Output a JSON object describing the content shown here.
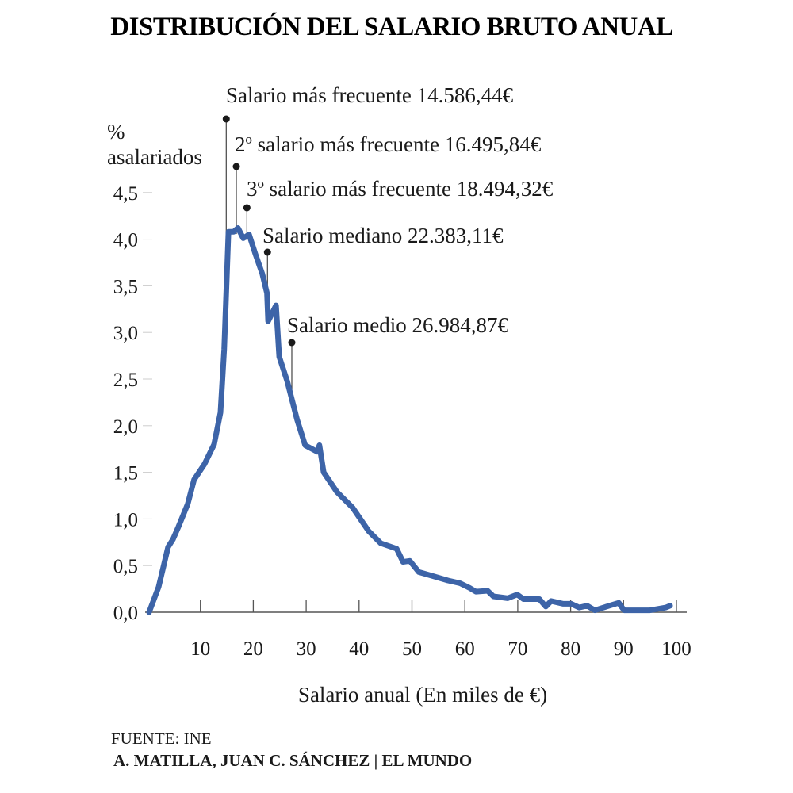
{
  "chart_data": {
    "type": "line",
    "title": "DISTRIBUCIÓN DEL SALARIO BRUTO ANUAL",
    "ylabel": [
      "%",
      "asalariados"
    ],
    "xlabel": "Salario anual (En miles de €)",
    "xlim": [
      0,
      100
    ],
    "ylim": [
      0,
      4.5
    ],
    "x_ticks": [
      "10",
      "20",
      "30",
      "40",
      "50",
      "60",
      "70",
      "80",
      "90",
      "100"
    ],
    "y_ticks": [
      "0,0",
      "0,5",
      "1,0",
      "1,5",
      "2,0",
      "2,5",
      "3,0",
      "3,5",
      "4,0",
      "4,5"
    ],
    "grid": false,
    "line_color": "#3d64a8",
    "series": [
      {
        "x": [
          0.3,
          2.1,
          3.9,
          4.8,
          5.8,
          7.6,
          8.8,
          10.8,
          12.6,
          13.8,
          14.5,
          15.3,
          16.3,
          17.1,
          18.1,
          19.2,
          20.4,
          21.7,
          22.6,
          22.8,
          24.3,
          24.9,
          26.4,
          28.3,
          29.8,
          32.1,
          32.5,
          33.3,
          35.8,
          38.8,
          41.8,
          44.1,
          47.1,
          48.3,
          49.6,
          51.3,
          53.8,
          56.8,
          59.1,
          60.9,
          62.1,
          64.3,
          65.4,
          68.1,
          69.9,
          71.1,
          74.1,
          75.3,
          76.3,
          78.6,
          80.1,
          81.6,
          83.1,
          84.6,
          87.3,
          89.1,
          90.1,
          95.0,
          98.0,
          98.8
        ],
        "y": [
          0.0,
          0.27,
          0.7,
          0.78,
          0.91,
          1.16,
          1.42,
          1.59,
          1.8,
          2.14,
          2.82,
          4.08,
          4.08,
          4.12,
          4.01,
          4.05,
          3.84,
          3.63,
          3.42,
          3.12,
          3.29,
          2.74,
          2.48,
          2.06,
          1.79,
          1.72,
          1.79,
          1.5,
          1.29,
          1.12,
          0.87,
          0.74,
          0.68,
          0.54,
          0.55,
          0.43,
          0.39,
          0.34,
          0.31,
          0.26,
          0.22,
          0.23,
          0.17,
          0.15,
          0.19,
          0.14,
          0.14,
          0.06,
          0.12,
          0.09,
          0.09,
          0.05,
          0.07,
          0.02,
          0.07,
          0.1,
          0.02,
          0.02,
          0.05,
          0.07
        ]
      }
    ],
    "annotations": [
      {
        "text": "Salario más frecuente 14.586,44€",
        "x": 14.586
      },
      {
        "text": "2º salario más frecuente 16.495,84€",
        "x": 16.496
      },
      {
        "text": "3º salario más frecuente 18.494,32€",
        "x": 18.494
      },
      {
        "text": "Salario mediano 22.383,11€",
        "x": 22.383
      },
      {
        "text": "Salario medio 26.984,87€",
        "x": 26.985
      }
    ]
  },
  "footer": {
    "source": "FUENTE: INE",
    "credit": "A. MATILLA, JUAN C. SÁNCHEZ | EL MUNDO"
  }
}
